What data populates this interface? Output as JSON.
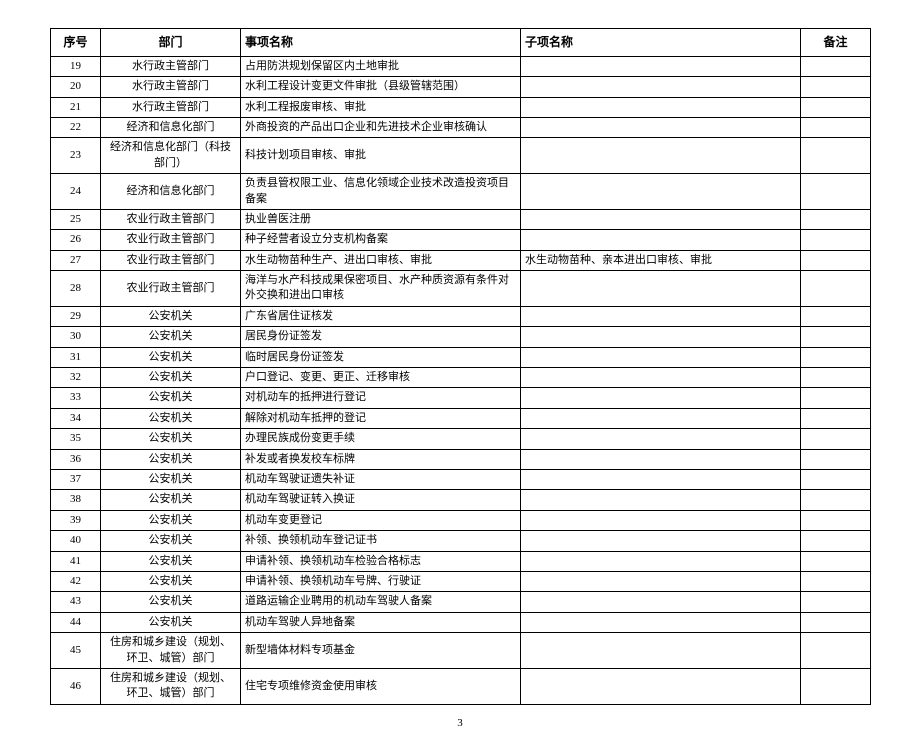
{
  "table": {
    "headers": {
      "seq": "序号",
      "dept": "部门",
      "item": "事项名称",
      "sub": "子项名称",
      "note": "备注"
    },
    "rows": [
      {
        "seq": "19",
        "dept": "水行政主管部门",
        "item": "占用防洪规划保留区内土地审批",
        "sub": "",
        "note": ""
      },
      {
        "seq": "20",
        "dept": "水行政主管部门",
        "item": "水利工程设计变更文件审批（县级管辖范围）",
        "sub": "",
        "note": ""
      },
      {
        "seq": "21",
        "dept": "水行政主管部门",
        "item": "水利工程报废审核、审批",
        "sub": "",
        "note": ""
      },
      {
        "seq": "22",
        "dept": "经济和信息化部门",
        "item": "外商投资的产品出口企业和先进技术企业审核确认",
        "sub": "",
        "note": ""
      },
      {
        "seq": "23",
        "dept": "经济和信息化部门（科技部门）",
        "item": "科技计划项目审核、审批",
        "sub": "",
        "note": ""
      },
      {
        "seq": "24",
        "dept": "经济和信息化部门",
        "item": "负责县管权限工业、信息化领域企业技术改造投资项目备案",
        "sub": "",
        "note": ""
      },
      {
        "seq": "25",
        "dept": "农业行政主管部门",
        "item": "执业兽医注册",
        "sub": "",
        "note": ""
      },
      {
        "seq": "26",
        "dept": "农业行政主管部门",
        "item": "种子经营者设立分支机构备案",
        "sub": "",
        "note": ""
      },
      {
        "seq": "27",
        "dept": "农业行政主管部门",
        "item": "水生动物苗种生产、进出口审核、审批",
        "sub": "水生动物苗种、亲本进出口审核、审批",
        "note": ""
      },
      {
        "seq": "28",
        "dept": "农业行政主管部门",
        "item": "海洋与水产科技成果保密项目、水产种质资源有条件对外交换和进出口审核",
        "sub": "",
        "note": ""
      },
      {
        "seq": "29",
        "dept": "公安机关",
        "item": "广东省居住证核发",
        "sub": "",
        "note": ""
      },
      {
        "seq": "30",
        "dept": "公安机关",
        "item": "居民身份证签发",
        "sub": "",
        "note": ""
      },
      {
        "seq": "31",
        "dept": "公安机关",
        "item": "临时居民身份证签发",
        "sub": "",
        "note": ""
      },
      {
        "seq": "32",
        "dept": "公安机关",
        "item": "户口登记、变更、更正、迁移审核",
        "sub": "",
        "note": ""
      },
      {
        "seq": "33",
        "dept": "公安机关",
        "item": "对机动车的抵押进行登记",
        "sub": "",
        "note": ""
      },
      {
        "seq": "34",
        "dept": "公安机关",
        "item": "解除对机动车抵押的登记",
        "sub": "",
        "note": ""
      },
      {
        "seq": "35",
        "dept": "公安机关",
        "item": "办理民族成份变更手续",
        "sub": "",
        "note": ""
      },
      {
        "seq": "36",
        "dept": "公安机关",
        "item": "补发或者换发校车标牌",
        "sub": "",
        "note": ""
      },
      {
        "seq": "37",
        "dept": "公安机关",
        "item": "机动车驾驶证遗失补证",
        "sub": "",
        "note": ""
      },
      {
        "seq": "38",
        "dept": "公安机关",
        "item": "机动车驾驶证转入换证",
        "sub": "",
        "note": ""
      },
      {
        "seq": "39",
        "dept": "公安机关",
        "item": "机动车变更登记",
        "sub": "",
        "note": ""
      },
      {
        "seq": "40",
        "dept": "公安机关",
        "item": "补领、换领机动车登记证书",
        "sub": "",
        "note": ""
      },
      {
        "seq": "41",
        "dept": "公安机关",
        "item": "申请补领、换领机动车检验合格标志",
        "sub": "",
        "note": ""
      },
      {
        "seq": "42",
        "dept": "公安机关",
        "item": "申请补领、换领机动车号牌、行驶证",
        "sub": "",
        "note": ""
      },
      {
        "seq": "43",
        "dept": "公安机关",
        "item": "道路运输企业聘用的机动车驾驶人备案",
        "sub": "",
        "note": ""
      },
      {
        "seq": "44",
        "dept": "公安机关",
        "item": "机动车驾驶人异地备案",
        "sub": "",
        "note": ""
      },
      {
        "seq": "45",
        "dept": "住房和城乡建设（规划、环卫、城管）部门",
        "item": "新型墙体材料专项基金",
        "sub": "",
        "note": ""
      },
      {
        "seq": "46",
        "dept": "住房和城乡建设（规划、环卫、城管）部门",
        "item": "住宅专项维修资金使用审核",
        "sub": "",
        "note": ""
      }
    ]
  },
  "page_number": "3"
}
